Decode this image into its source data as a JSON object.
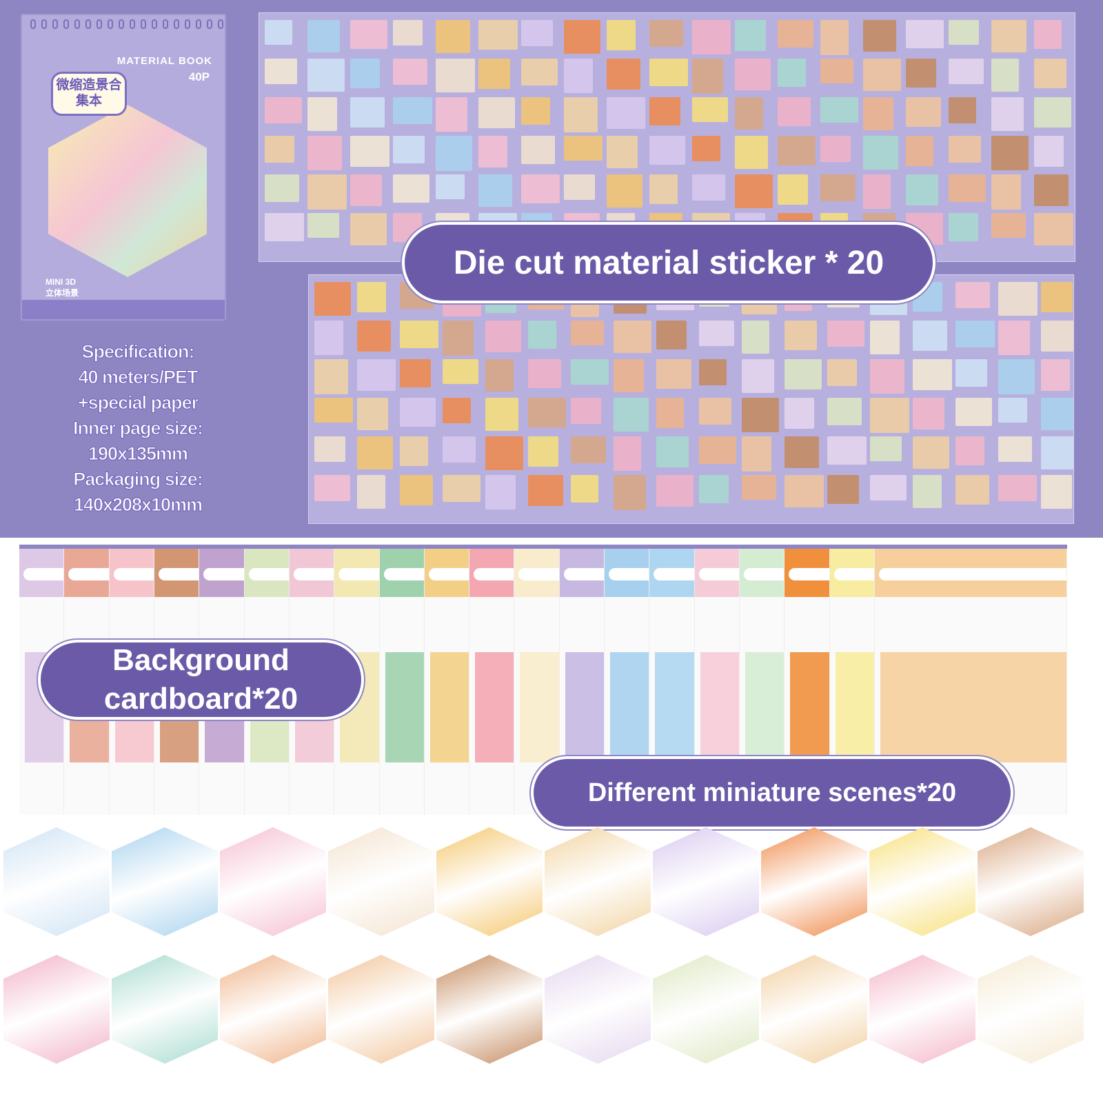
{
  "book": {
    "title_cn": "微缩造景合集本",
    "label": "MATERIAL BOOK",
    "pages": "40P",
    "mini": "MINI 3D",
    "mini_cn": "立体场景",
    "accent": "#8e86c3"
  },
  "spec": [
    "Specification:",
    "40 meters/PET",
    "+special paper",
    "Inner page size:",
    "190x135mm",
    "Packaging size:",
    "140x208x10mm"
  ],
  "labels": {
    "stickers": "Die cut material sticker * 20",
    "cardboard": "Background cardboard*20",
    "scenes": "Different miniature scenes*20"
  },
  "cardboard_colors": [
    "#ddc9e6",
    "#e9a895",
    "#f6c3cb",
    "#d39672",
    "#c0a2cf",
    "#d9e6bf",
    "#f1c6d5",
    "#f3e8b1",
    "#9fd1ad",
    "#f3cf85",
    "#f4a6b1",
    "#f9eccc",
    "#c7b8e2",
    "#a6d0ee",
    "#aed6f1",
    "#f6cbd8",
    "#d4ecd2",
    "#f0903d",
    "#f7ec9f",
    "#f6cf9c"
  ],
  "scene_colors": [
    "#cfe3f4",
    "#a9d3ef",
    "#f6bfd1",
    "#f3e3cf",
    "#f5c76d",
    "#f2d4a2",
    "#d9c9ef",
    "#f08a4a",
    "#f8e07a",
    "#d9a681",
    "#f2b3c7",
    "#a8dbcf",
    "#f0b48a",
    "#f2c59b",
    "#c48a5e",
    "#e6d7ef",
    "#dde8c2",
    "#f2cfa0",
    "#f4b7c9",
    "#f6ead3"
  ]
}
